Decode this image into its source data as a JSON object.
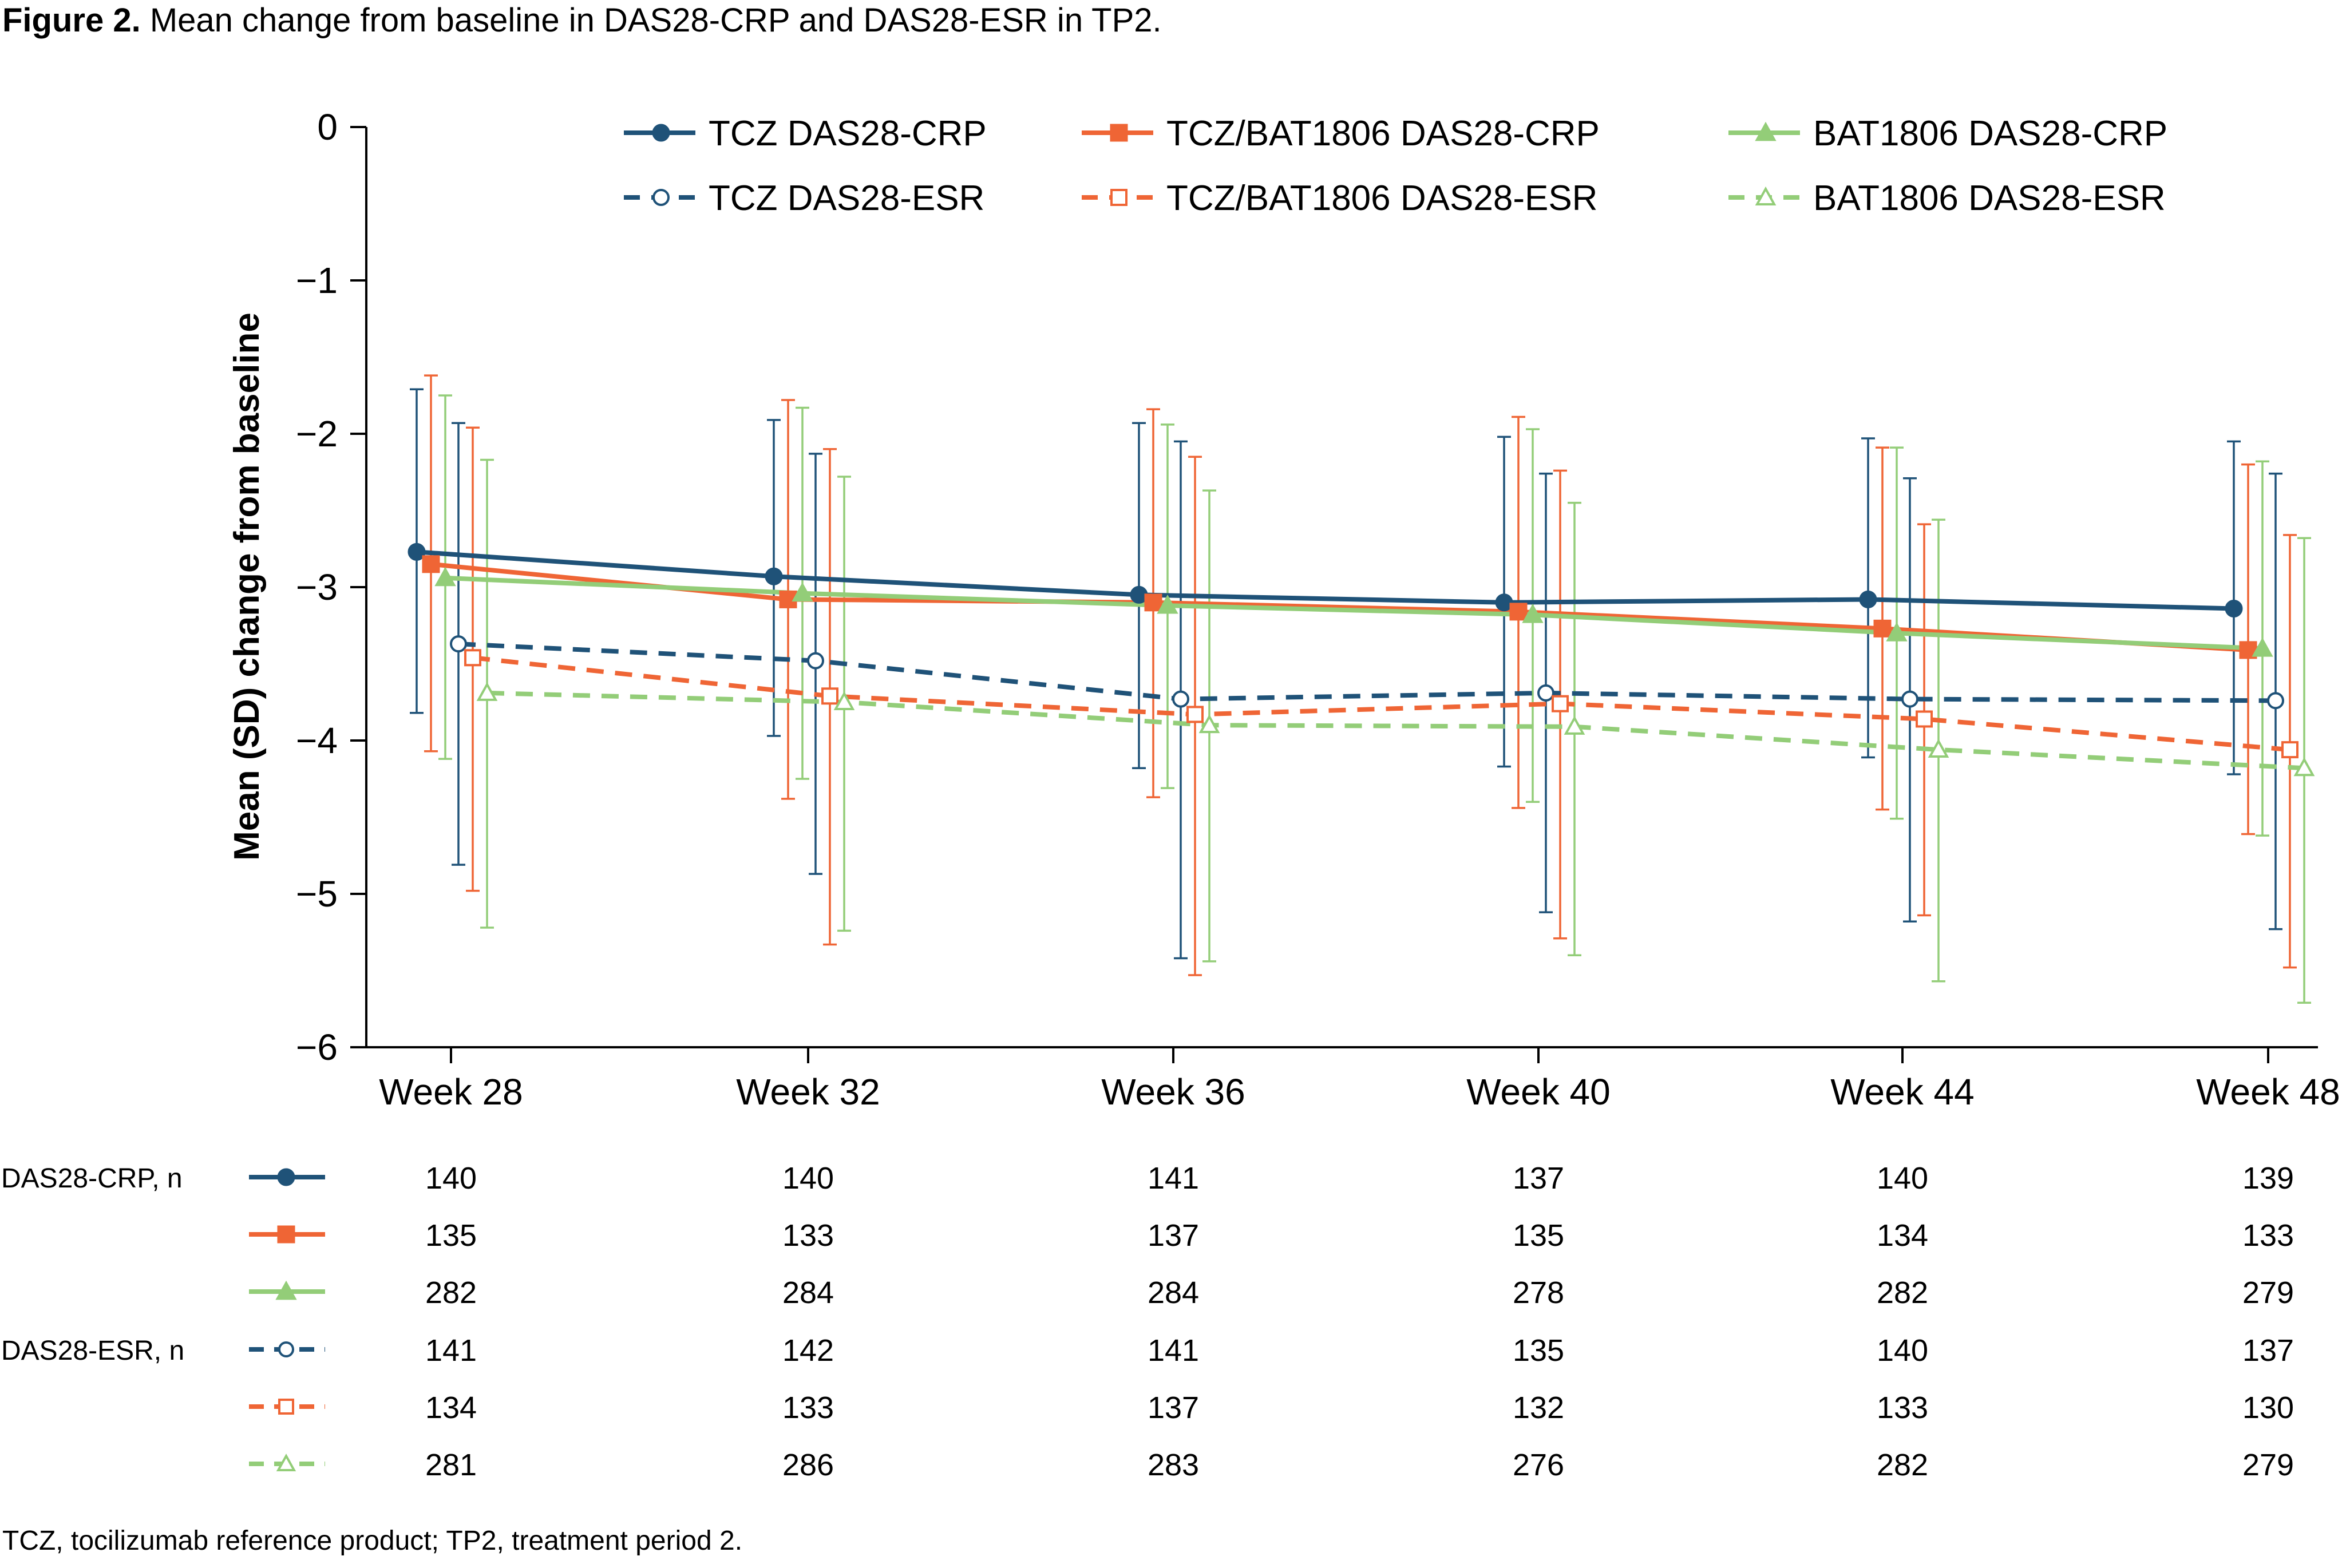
{
  "figure": {
    "label": "Figure 2.",
    "caption": "Mean change from baseline in DAS28-CRP and DAS28-ESR in TP2."
  },
  "footnote": "TCZ, tocilizumab reference product; TP2, treatment period 2.",
  "colors": {
    "tcz": "#1f5278",
    "tcz_bat": "#ef6535",
    "bat": "#93cd78"
  },
  "chart_data": {
    "type": "line",
    "title": "",
    "xlabel": "",
    "ylabel": "Mean (SD) change from baseline",
    "ylim": [
      -6,
      0
    ],
    "yticks": [
      "0",
      "−1",
      "−2",
      "−3",
      "−4",
      "−5",
      "−6"
    ],
    "ytick_values": [
      0,
      -1,
      -2,
      -3,
      -4,
      -5,
      -6
    ],
    "categories": [
      "Week 28",
      "Week 32",
      "Week 36",
      "Week 40",
      "Week 44",
      "Week 48"
    ],
    "legend_position": "top",
    "series": [
      {
        "key": "tcz_crp",
        "name": "TCZ DAS28-CRP",
        "color": "#1f5278",
        "dashed": false,
        "marker": "circle",
        "filled": true,
        "values": [
          -2.77,
          -2.93,
          -3.05,
          -3.1,
          -3.08,
          -3.14
        ],
        "sd_low": [
          -3.82,
          -3.97,
          -4.18,
          -4.17,
          -4.11,
          -4.22
        ],
        "sd_high": [
          -1.71,
          -1.91,
          -1.93,
          -2.02,
          -2.03,
          -2.05
        ]
      },
      {
        "key": "bat_tcz_crp",
        "name": "TCZ/BAT1806 DAS28-CRP",
        "color": "#ef6535",
        "dashed": false,
        "marker": "square",
        "filled": true,
        "values": [
          -2.85,
          -3.08,
          -3.1,
          -3.16,
          -3.27,
          -3.41
        ],
        "sd_low": [
          -4.07,
          -4.38,
          -4.37,
          -4.44,
          -4.45,
          -4.61
        ],
        "sd_high": [
          -1.62,
          -1.78,
          -1.84,
          -1.89,
          -2.09,
          -2.2
        ]
      },
      {
        "key": "bat_crp",
        "name": "BAT1806 DAS28-CRP",
        "color": "#93cd78",
        "dashed": false,
        "marker": "triangle",
        "filled": true,
        "values": [
          -2.94,
          -3.04,
          -3.12,
          -3.18,
          -3.3,
          -3.4
        ],
        "sd_low": [
          -4.12,
          -4.25,
          -4.31,
          -4.4,
          -4.51,
          -4.62
        ],
        "sd_high": [
          -1.75,
          -1.83,
          -1.94,
          -1.97,
          -2.09,
          -2.18
        ]
      },
      {
        "key": "tcz_esr",
        "name": "TCZ DAS28-ESR",
        "color": "#1f5278",
        "dashed": true,
        "marker": "circle",
        "filled": false,
        "values": [
          -3.37,
          -3.48,
          -3.73,
          -3.69,
          -3.73,
          -3.74
        ],
        "sd_low": [
          -4.81,
          -4.87,
          -5.42,
          -5.12,
          -5.18,
          -5.23
        ],
        "sd_high": [
          -1.93,
          -2.13,
          -2.05,
          -2.26,
          -2.29,
          -2.26
        ]
      },
      {
        "key": "bat_tcz_esr",
        "name": "TCZ/BAT1806 DAS28-ESR",
        "color": "#ef6535",
        "dashed": true,
        "marker": "square",
        "filled": false,
        "values": [
          -3.46,
          -3.71,
          -3.83,
          -3.76,
          -3.86,
          -4.06
        ],
        "sd_low": [
          -4.98,
          -5.33,
          -5.53,
          -5.29,
          -5.14,
          -5.48
        ],
        "sd_high": [
          -1.96,
          -2.1,
          -2.15,
          -2.24,
          -2.59,
          -2.66
        ]
      },
      {
        "key": "bat_esr",
        "name": "BAT1806 DAS28-ESR",
        "color": "#93cd78",
        "dashed": true,
        "marker": "triangle",
        "filled": false,
        "values": [
          -3.69,
          -3.75,
          -3.9,
          -3.91,
          -4.06,
          -4.18
        ],
        "sd_low": [
          -5.22,
          -5.24,
          -5.44,
          -5.4,
          -5.57,
          -5.71
        ],
        "sd_high": [
          -2.17,
          -2.28,
          -2.37,
          -2.45,
          -2.56,
          -2.68
        ]
      }
    ],
    "n_table": {
      "crp_label": "DAS28-CRP, n",
      "esr_label": "DAS28-ESR, n",
      "rows": [
        {
          "series": "tcz_crp",
          "values": [
            "140",
            "140",
            "141",
            "137",
            "140",
            "139"
          ]
        },
        {
          "series": "bat_tcz_crp",
          "values": [
            "135",
            "133",
            "137",
            "135",
            "134",
            "133"
          ]
        },
        {
          "series": "bat_crp",
          "values": [
            "282",
            "284",
            "284",
            "278",
            "282",
            "279"
          ]
        },
        {
          "series": "tcz_esr",
          "values": [
            "141",
            "142",
            "141",
            "135",
            "140",
            "137"
          ]
        },
        {
          "series": "bat_tcz_esr",
          "values": [
            "134",
            "133",
            "137",
            "132",
            "133",
            "130"
          ]
        },
        {
          "series": "bat_esr",
          "values": [
            "281",
            "286",
            "283",
            "276",
            "282",
            "279"
          ]
        }
      ]
    }
  }
}
